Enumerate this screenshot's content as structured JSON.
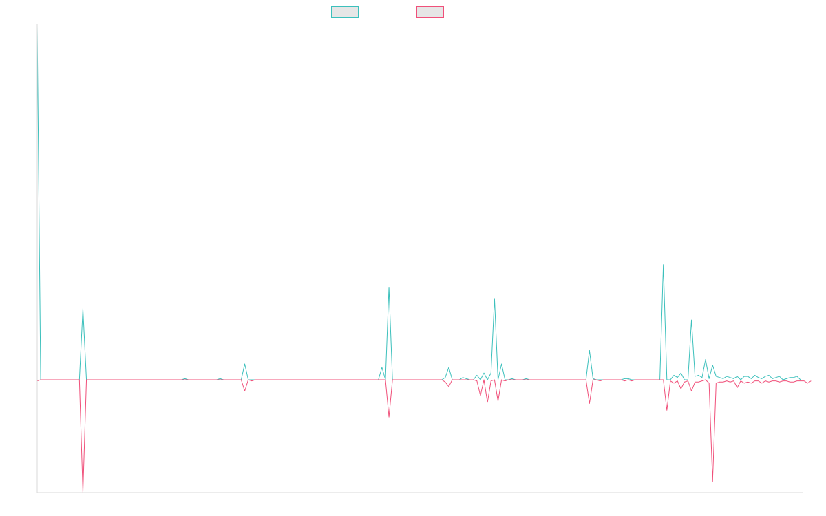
{
  "chart_data": {
    "type": "line",
    "title": "",
    "xlabel": "",
    "ylabel": "",
    "grid": false,
    "axis_labels_shown": false,
    "legend_position": "top-center",
    "ylim": [
      -100,
      314
    ],
    "x_start": 0,
    "x_step": 1,
    "series": [
      {
        "color": "#3cc0bc",
        "fill": "#e6e6e6",
        "values": [
          314,
          0,
          0,
          0,
          0,
          0,
          0,
          0,
          0,
          0,
          0,
          0,
          0,
          63,
          0,
          0,
          0,
          0,
          0,
          0,
          0,
          0,
          0,
          0,
          0,
          0,
          0,
          0,
          0,
          0,
          0,
          0,
          0,
          0,
          0,
          0,
          0,
          0,
          0,
          0,
          0,
          0,
          1,
          0,
          0,
          0,
          0,
          0,
          0,
          0,
          0,
          0,
          1,
          0,
          0,
          0,
          0,
          0,
          0,
          14,
          0,
          0,
          0,
          0,
          0,
          0,
          0,
          0,
          0,
          0,
          0,
          0,
          0,
          0,
          0,
          0,
          0,
          0,
          0,
          0,
          0,
          0,
          0,
          0,
          0,
          0,
          0,
          0,
          0,
          0,
          0,
          0,
          0,
          0,
          0,
          0,
          0,
          0,
          11,
          0,
          82,
          0,
          0,
          0,
          0,
          0,
          0,
          0,
          0,
          0,
          0,
          0,
          0,
          0,
          0,
          0,
          2,
          11,
          0,
          0,
          0,
          2,
          1,
          0,
          0,
          4,
          0,
          6,
          0,
          6,
          72,
          0,
          14,
          0,
          0,
          1,
          0,
          0,
          0,
          1,
          0,
          0,
          0,
          0,
          0,
          0,
          0,
          0,
          0,
          0,
          0,
          0,
          0,
          0,
          0,
          0,
          0,
          26,
          1,
          0,
          0,
          0,
          0,
          0,
          0,
          0,
          0,
          1,
          1,
          0,
          0,
          0,
          0,
          0,
          0,
          0,
          0,
          0,
          102,
          0,
          0,
          4,
          2,
          6,
          0,
          0,
          53,
          3,
          4,
          2,
          18,
          1,
          13,
          3,
          2,
          1,
          3,
          2,
          1,
          3,
          0,
          3,
          3,
          1,
          4,
          2,
          1,
          3,
          4,
          1,
          2,
          3,
          0,
          1,
          2,
          2,
          3,
          0
        ]
      },
      {
        "color": "#f0507a",
        "fill": "#e6e6e6",
        "values": [
          -1,
          0,
          0,
          0,
          0,
          0,
          0,
          0,
          0,
          0,
          0,
          0,
          0,
          -100,
          0,
          0,
          0,
          0,
          0,
          0,
          0,
          0,
          0,
          0,
          0,
          0,
          0,
          0,
          0,
          0,
          0,
          0,
          0,
          0,
          0,
          0,
          0,
          0,
          0,
          0,
          0,
          0,
          0,
          0,
          0,
          0,
          0,
          0,
          0,
          0,
          0,
          0,
          0,
          0,
          0,
          0,
          0,
          0,
          0,
          -10,
          0,
          -1,
          0,
          0,
          0,
          0,
          0,
          0,
          0,
          0,
          0,
          0,
          0,
          0,
          0,
          0,
          0,
          0,
          0,
          0,
          0,
          0,
          0,
          0,
          0,
          0,
          0,
          0,
          0,
          0,
          0,
          0,
          0,
          0,
          0,
          0,
          0,
          0,
          0,
          0,
          -33,
          0,
          0,
          0,
          0,
          0,
          0,
          0,
          0,
          0,
          0,
          0,
          0,
          0,
          0,
          0,
          -2,
          -6,
          0,
          0,
          0,
          0,
          0,
          0,
          0,
          -1,
          -14,
          0,
          -20,
          -1,
          0,
          -19,
          0,
          -1,
          0,
          0,
          0,
          0,
          0,
          0,
          0,
          0,
          0,
          0,
          0,
          0,
          0,
          0,
          0,
          0,
          0,
          0,
          0,
          0,
          0,
          0,
          0,
          -21,
          0,
          0,
          -1,
          0,
          0,
          0,
          0,
          0,
          0,
          -1,
          0,
          -1,
          0,
          0,
          0,
          0,
          0,
          0,
          0,
          0,
          0,
          -27,
          -1,
          -3,
          -1,
          -8,
          -2,
          -1,
          -10,
          -2,
          -2,
          -1,
          0,
          -3,
          -90,
          -3,
          -2,
          -2,
          -1,
          -2,
          -1,
          -7,
          -1,
          -3,
          -2,
          -3,
          -1,
          -1,
          -3,
          -1,
          -2,
          -1,
          -1,
          -2,
          -1,
          -1,
          -2,
          -2,
          -1,
          -1,
          -1,
          -3,
          -1
        ]
      }
    ]
  }
}
